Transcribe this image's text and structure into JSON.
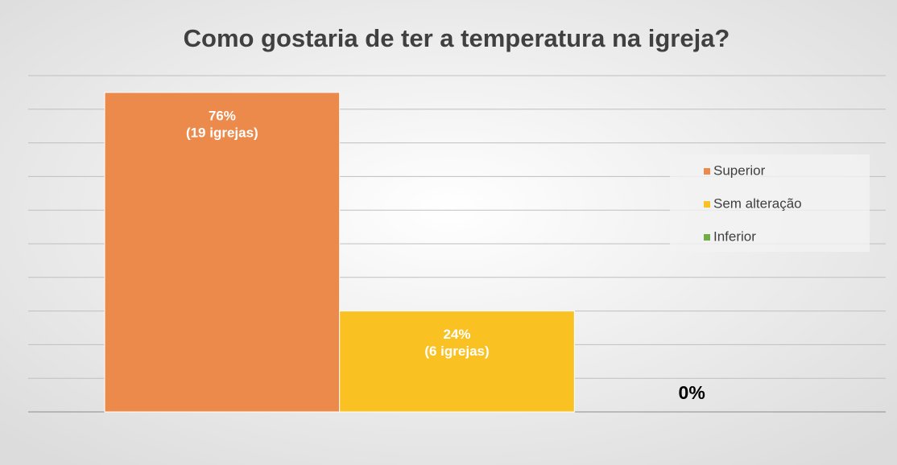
{
  "chart_data": {
    "type": "bar",
    "title": "Como gostaria de ter a temperatura na igreja?",
    "categories": [
      null
    ],
    "series": [
      {
        "name": "Superior",
        "color": "#ec8a4c",
        "values": [
          76
        ],
        "value_labels": [
          [
            "76%",
            "(19 igrejas)"
          ]
        ]
      },
      {
        "name": "Sem alteração",
        "color": "#f9c122",
        "values": [
          24
        ],
        "value_labels": [
          [
            "24%",
            "(6 igrejas)"
          ]
        ]
      },
      {
        "name": "Inferior",
        "color": "#70ad47",
        "values": [
          0
        ],
        "value_labels": [
          [
            "0%"
          ]
        ]
      }
    ],
    "ylim": [
      0,
      80
    ],
    "yticks": [
      0,
      8,
      16,
      24,
      32,
      40,
      48,
      56,
      64,
      72,
      80
    ],
    "grid": true,
    "legend": "right"
  }
}
